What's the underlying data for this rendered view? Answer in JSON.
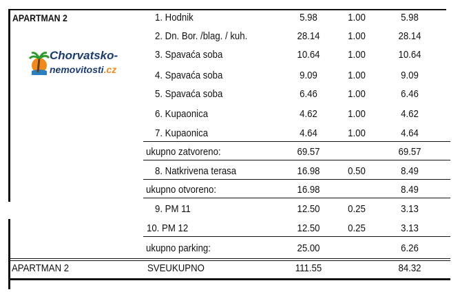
{
  "section_label": "APARTMAN 2",
  "rows": [
    {
      "label": "1. Hodnik",
      "area": "5.98",
      "coef": "1.00",
      "result": "5.98"
    },
    {
      "label": "2. Dn. Bor. /blag. / kuh.",
      "area": "28.14",
      "coef": "1.00",
      "result": "28.14"
    },
    {
      "label": "3. Spavaća soba",
      "area": "10.64",
      "coef": "1.00",
      "result": "10.64"
    },
    {
      "label": "4. Spavaća soba",
      "area": "9.09",
      "coef": "1.00",
      "result": "9.09"
    },
    {
      "label": "5. Spavaća soba",
      "area": "6.46",
      "coef": "1.00",
      "result": "6.46"
    },
    {
      "label": "6. Kupaonica",
      "area": "4.62",
      "coef": "1.00",
      "result": "4.62"
    },
    {
      "label": "7. Kupaonica",
      "area": "4.64",
      "coef": "1.00",
      "result": "4.64"
    },
    {
      "label": "ukupno zatvoreno:",
      "area": "69.57",
      "coef": "",
      "result": "69.57",
      "subtotal": true
    },
    {
      "label": "8. Natkrivena terasa",
      "area": "16.98",
      "coef": "0.50",
      "result": "8.49"
    },
    {
      "label": "ukupno otvoreno:",
      "area": "16.98",
      "coef": "",
      "result": "8.49",
      "subtotal": true
    },
    {
      "label": "9. PM 11",
      "area": "12.50",
      "coef": "0.25",
      "result": "3.13"
    },
    {
      "label": "10. PM 12",
      "area": "12.50",
      "coef": "0.25",
      "result": "3.13"
    },
    {
      "label": "ukupno parking:",
      "area": "25.00",
      "coef": "",
      "result": "6.26",
      "subtotal": true
    }
  ],
  "total": {
    "section": "APARTMAN 2",
    "label": "SVEUKUPNO",
    "area": "111.55",
    "result": "84.32"
  },
  "watermark": {
    "line1": "Chorvatsko-",
    "line2": "nemovitosti",
    "tld": ".cz",
    "text_color": "#1b3b6f",
    "accent": "#f08a1c"
  }
}
